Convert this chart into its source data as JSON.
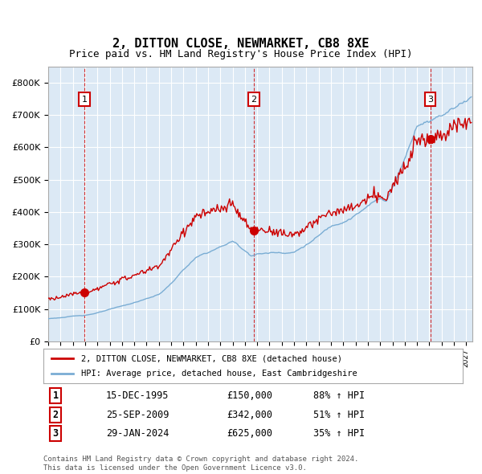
{
  "title": "2, DITTON CLOSE, NEWMARKET, CB8 8XE",
  "subtitle": "Price paid vs. HM Land Registry's House Price Index (HPI)",
  "hpi_label": "HPI: Average price, detached house, East Cambridgeshire",
  "price_label": "2, DITTON CLOSE, NEWMARKET, CB8 8XE (detached house)",
  "footnote": "Contains HM Land Registry data © Crown copyright and database right 2024.\nThis data is licensed under the Open Government Licence v3.0.",
  "sales": [
    {
      "num": 1,
      "date": "15-DEC-1995",
      "price": 150000,
      "pct": "88%",
      "x_year": 1995.96
    },
    {
      "num": 2,
      "date": "25-SEP-2009",
      "price": 342000,
      "pct": "51%",
      "x_year": 2009.73
    },
    {
      "num": 3,
      "date": "29-JAN-2024",
      "price": 625000,
      "pct": "35%",
      "x_year": 2024.08
    }
  ],
  "ylim": [
    0,
    850000
  ],
  "yticks": [
    0,
    100000,
    200000,
    300000,
    400000,
    500000,
    600000,
    700000,
    800000
  ],
  "xlim_start": 1993.0,
  "xlim_end": 2027.5,
  "background_color": "#dce9f5",
  "plot_bg": "#dce9f5",
  "grid_color": "#ffffff",
  "hpi_color": "#7aadd4",
  "price_color": "#cc0000",
  "sale_dot_color": "#cc0000",
  "vline_color": "#cc0000",
  "label_box_color": "#cc0000",
  "title_fontsize": 11,
  "subtitle_fontsize": 9,
  "axis_fontsize": 8,
  "legend_fontsize": 8
}
